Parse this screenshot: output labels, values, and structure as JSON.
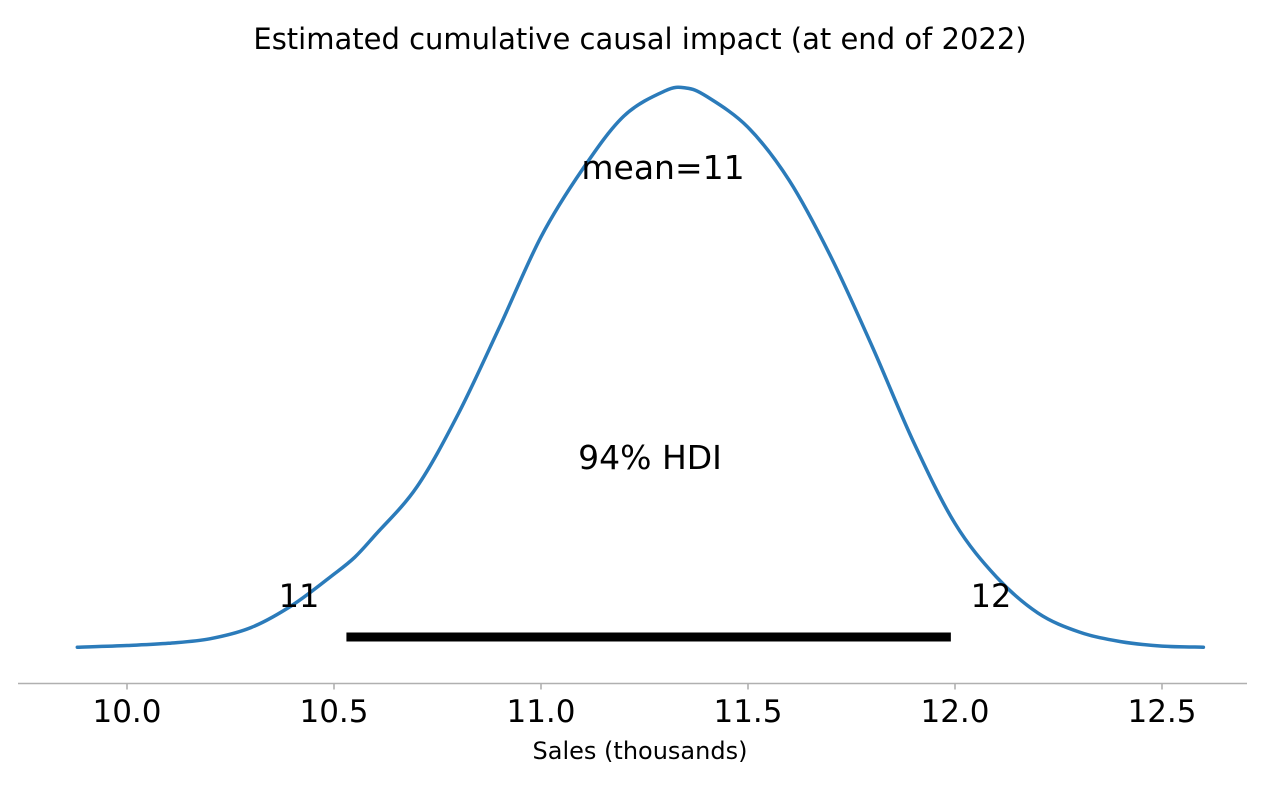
{
  "chart_data": {
    "type": "line",
    "variant": "posterior-density-kde",
    "title": "Estimated cumulative causal impact (at end of 2022)",
    "xlabel": "Sales (thousands)",
    "ylabel": "",
    "grid": false,
    "legend": "none",
    "xlim": [
      9.82,
      12.66
    ],
    "x_ticks": [
      {
        "value": 10.0,
        "label": "10.0"
      },
      {
        "value": 10.5,
        "label": "10.5"
      },
      {
        "value": 11.0,
        "label": "11.0"
      },
      {
        "value": 11.5,
        "label": "11.5"
      },
      {
        "value": 12.0,
        "label": "12.0"
      },
      {
        "value": 12.5,
        "label": "12.5"
      }
    ],
    "curve_color": "#2b7bba",
    "hdi_bar_color": "#000000",
    "axis_color": "#b0b0b0",
    "curve": {
      "x": [
        9.88,
        10.0,
        10.1,
        10.2,
        10.3,
        10.4,
        10.5,
        10.55,
        10.6,
        10.7,
        10.8,
        10.9,
        11.0,
        11.1,
        11.2,
        11.3,
        11.35,
        11.4,
        11.5,
        11.6,
        11.7,
        11.8,
        11.9,
        12.0,
        12.1,
        12.2,
        12.3,
        12.4,
        12.5,
        12.6
      ],
      "density": [
        0.005,
        0.008,
        0.012,
        0.02,
        0.04,
        0.08,
        0.135,
        0.165,
        0.205,
        0.29,
        0.42,
        0.575,
        0.735,
        0.855,
        0.95,
        0.995,
        1.0,
        0.985,
        0.93,
        0.835,
        0.7,
        0.54,
        0.37,
        0.225,
        0.13,
        0.066,
        0.032,
        0.015,
        0.007,
        0.005
      ]
    },
    "mean": 11,
    "hdi": {
      "percent": 94,
      "lower": 10.53,
      "upper": 11.99
    },
    "annotations": {
      "mean_label": "mean=11",
      "hdi_label": "94% HDI",
      "hdi_lower_label": "11",
      "hdi_upper_label": "12"
    }
  }
}
